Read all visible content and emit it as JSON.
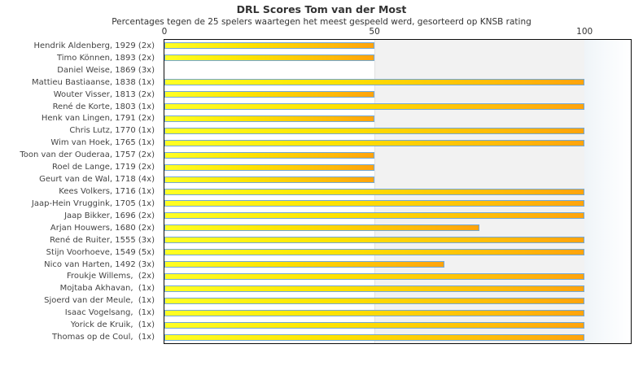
{
  "chart_data": {
    "type": "bar",
    "orientation": "horizontal",
    "title": "DRL Scores Tom van der Most",
    "subtitle": "Percentages tegen de 25 spelers waartegen het meest gespeeld werd, gesorteerd op KNSB rating",
    "xlabel": "",
    "ylabel": "",
    "xlim": [
      0,
      111
    ],
    "x_ticks": [
      {
        "value": 0,
        "label": "0"
      },
      {
        "value": 50,
        "label": "50"
      },
      {
        "value": 100,
        "label": "100"
      }
    ],
    "grid": "vertical gridline at 50, shaded band 50-100, fade band beyond 100",
    "legend_position": "none",
    "categories": [
      "Hendrik Aldenberg, 1929 (2x)",
      "Timo Können, 1893 (2x)",
      "Daniel Weise, 1869 (3x)",
      "Mattieu Bastiaanse, 1838 (1x)",
      "Wouter Visser, 1813 (2x)",
      "René de Korte, 1803 (1x)",
      "Henk van Lingen, 1791 (2x)",
      "Chris Lutz, 1770 (1x)",
      "Wim van Hoek, 1765 (1x)",
      "Toon van der Ouderaa, 1757 (2x)",
      "Roel de Lange, 1719 (2x)",
      "Geurt van de Wal, 1718 (4x)",
      "Kees Volkers, 1716 (1x)",
      "Jaap-Hein Vruggink, 1705 (1x)",
      "Jaap Bikker, 1696 (2x)",
      "Arjan Houwers, 1680 (2x)",
      "René de Ruiter, 1555 (3x)",
      "Stijn Voorhoeve, 1549 (5x)",
      "Nico van Harten, 1492 (3x)",
      "Froukje Willems,  (2x)",
      "Mojtaba Akhavan,  (1x)",
      "Sjoerd van der Meule,  (1x)",
      "Isaac Vogelsang,  (1x)",
      "Yorick de Kruik,  (1x)",
      "Thomas op de Coul,  (1x)"
    ],
    "values": [
      50,
      50,
      0,
      100,
      50,
      100,
      50,
      100,
      100,
      50,
      50,
      50,
      100,
      100,
      100,
      75,
      100,
      100,
      66.7,
      100,
      100,
      100,
      100,
      100,
      100
    ],
    "bands": {
      "mid_start": 50,
      "mid_end": 100
    },
    "colors": {
      "bar_gradient_start": "#ffff24",
      "bar_gradient_end": "#ffa30d",
      "bar_border": "#72a8d7",
      "band_mid": "#f2f2f2",
      "band_right_start": "#eff4f8",
      "plot_border": "#0d0d0d",
      "text": "#333333"
    }
  }
}
